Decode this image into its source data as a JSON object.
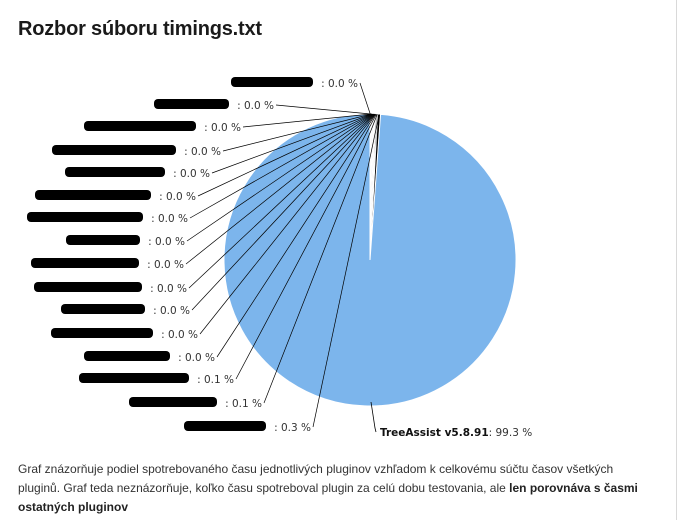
{
  "page": {
    "title": "Rozbor súboru timings.txt"
  },
  "description": {
    "text": "Graf znázorňuje podiel spotrebovaného času jednotlivých pluginov vzhľadom k celkovému súčtu časov všetkých pluginů. Graf teda neznázorňuje, koľko času spotreboval plugin za celú dobu testovania, ale ",
    "bold": "len porovnáva s časmi ostatných pluginov"
  },
  "chart_data": {
    "type": "pie",
    "colors": {
      "main_slice": "#7cb5ec",
      "redaction": "#000000",
      "connector": "#000000"
    },
    "slices": [
      {
        "label": "",
        "value": 0.0,
        "display": ": 0.0 %"
      },
      {
        "label": "",
        "value": 0.0,
        "display": ": 0.0 %"
      },
      {
        "label": "",
        "value": 0.0,
        "display": ": 0.0 %"
      },
      {
        "label": "",
        "value": 0.0,
        "display": ": 0.0 %"
      },
      {
        "label": "",
        "value": 0.0,
        "display": ": 0.0 %"
      },
      {
        "label": "",
        "value": 0.0,
        "display": ": 0.0 %"
      },
      {
        "label": "",
        "value": 0.0,
        "display": ": 0.0 %"
      },
      {
        "label": "",
        "value": 0.0,
        "display": ": 0.0 %"
      },
      {
        "label": "",
        "value": 0.0,
        "display": ": 0.0 %"
      },
      {
        "label": "",
        "value": 0.0,
        "display": ": 0.0 %"
      },
      {
        "label": "",
        "value": 0.0,
        "display": ": 0.0 %"
      },
      {
        "label": "",
        "value": 0.0,
        "display": ": 0.0 %"
      },
      {
        "label": "",
        "value": 0.0,
        "display": ": 0.0 %"
      },
      {
        "label": "",
        "value": 0.1,
        "display": ": 0.1 %"
      },
      {
        "label": "",
        "value": 0.1,
        "display": ": 0.1 %"
      },
      {
        "label": "",
        "value": 0.3,
        "display": ": 0.3 %"
      },
      {
        "label": "TreeAssist v5.8.91",
        "value": 99.3,
        "display": ": 99.3 %"
      }
    ]
  }
}
